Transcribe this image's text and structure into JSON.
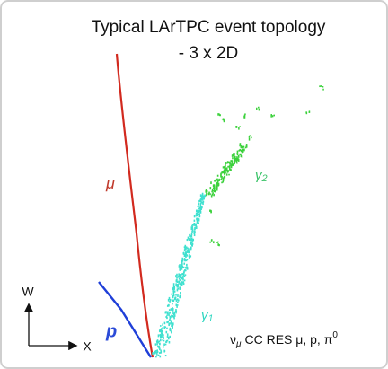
{
  "title": "Typical LArTPC event topology",
  "subtitle": "- 3 x 2D",
  "track_labels": {
    "muon": "μ",
    "proton": "p"
  },
  "shower_labels": [
    {
      "symbol": "γ",
      "index": "2"
    },
    {
      "symbol": "γ",
      "index": "1"
    }
  ],
  "axes": {
    "vertical": "W",
    "horizontal": "X"
  },
  "caption": {
    "nu": "ν",
    "nu_flavor": "μ",
    "text": "CC RES μ, p, π",
    "pi_charge": "0"
  }
}
